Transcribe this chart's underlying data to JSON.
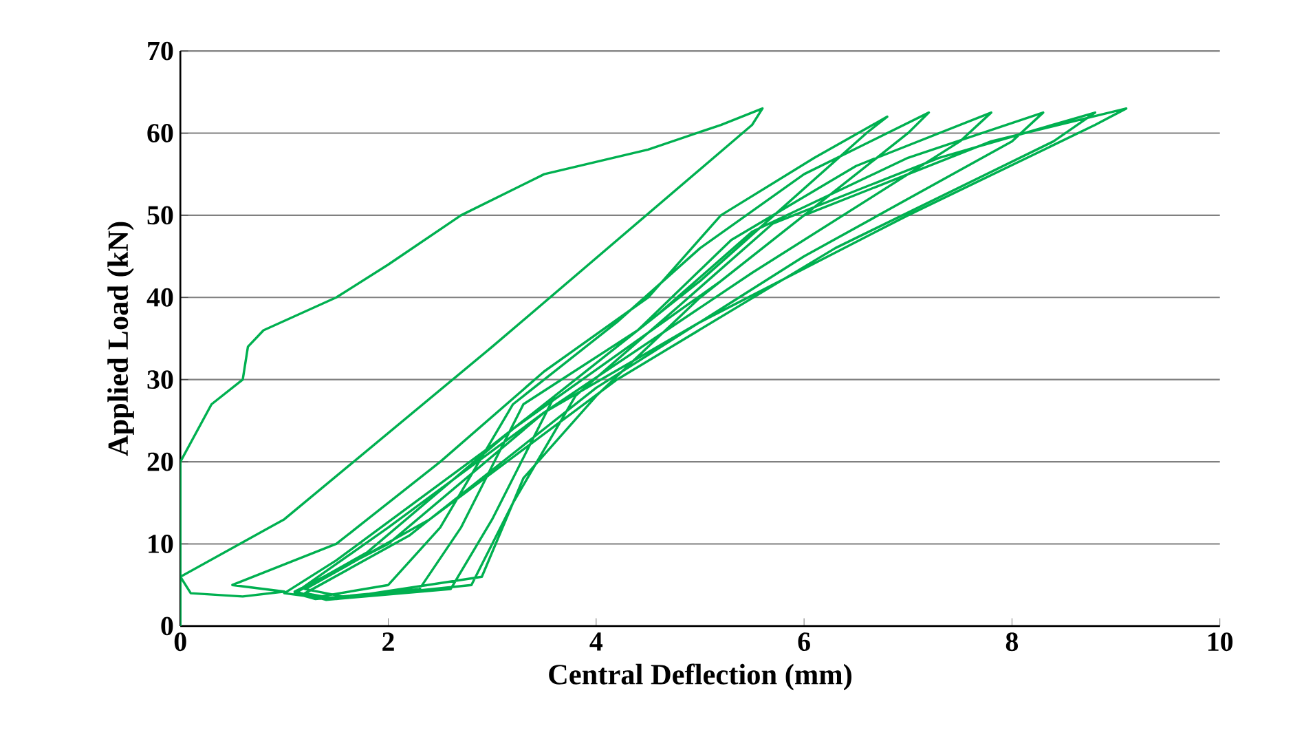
{
  "chart_data": {
    "type": "line",
    "xlabel": "Central Deflection (mm)",
    "ylabel": "Applied Load (kN)",
    "xlim": [
      0,
      10
    ],
    "ylim": [
      0,
      70
    ],
    "xticks": [
      0,
      2,
      4,
      6,
      8,
      10
    ],
    "yticks": [
      0,
      10,
      20,
      30,
      40,
      50,
      60,
      70
    ],
    "grid": "y",
    "marker": "none",
    "line_style": "solid",
    "series": [
      {
        "color": "#00b050",
        "x": [
          0,
          0,
          0.3,
          0.6,
          0.65,
          0.8,
          1.5,
          2,
          2.7,
          3.5,
          4.5,
          5.2,
          5.6,
          5.5,
          3,
          1,
          0,
          0.1,
          0.6,
          1.0,
          0.5,
          1.5,
          2.5,
          3.5,
          4.5,
          5.2,
          6.1,
          6.8,
          6.6,
          5,
          3,
          1.5,
          1.0,
          1.3,
          2,
          2.5,
          3.2,
          4.2,
          5,
          6,
          7.2,
          7,
          5.2,
          3.2,
          1.8,
          1.1,
          1.3,
          2.3,
          2.7,
          3.3,
          4.4,
          5.3,
          6.5,
          7.8,
          7.5,
          5.5,
          3.5,
          2,
          1.1,
          1.4,
          2.6,
          3,
          3.6,
          4.6,
          5.5,
          7,
          8.3,
          8,
          6,
          4,
          2.2,
          1.2,
          1.5,
          2.8,
          3.2,
          3.8,
          4.8,
          5.7,
          7.3,
          8.8,
          8.4,
          6.3,
          4.2,
          2.4,
          1.2,
          1.6,
          2.9,
          3.3,
          4,
          5,
          6,
          7.8,
          9.1,
          8.8,
          7,
          5,
          3.5,
          2,
          1.1
        ],
        "values": [
          0,
          20,
          27,
          30,
          34,
          36,
          40,
          44,
          50,
          55,
          58,
          61,
          63,
          61,
          34,
          13,
          6,
          4,
          3.6,
          4.2,
          5,
          10,
          20,
          31,
          40,
          50,
          57,
          62,
          60,
          42,
          22,
          8,
          4,
          3.5,
          5,
          12,
          27,
          37,
          46,
          55,
          62.5,
          60,
          42,
          24,
          9,
          4,
          3.3,
          4.5,
          12,
          27,
          36,
          47,
          56,
          62.5,
          59,
          43,
          26,
          10,
          4.2,
          3.2,
          4.5,
          13,
          28,
          38,
          48,
          57,
          62.5,
          59,
          45,
          29,
          11,
          4,
          3.3,
          5,
          15,
          28,
          39,
          49,
          57,
          62.5,
          59,
          46,
          30,
          13,
          4.5,
          3.5,
          6,
          18,
          28,
          40,
          50,
          59,
          63,
          61,
          50,
          37,
          26,
          12,
          4
        ]
      }
    ]
  }
}
